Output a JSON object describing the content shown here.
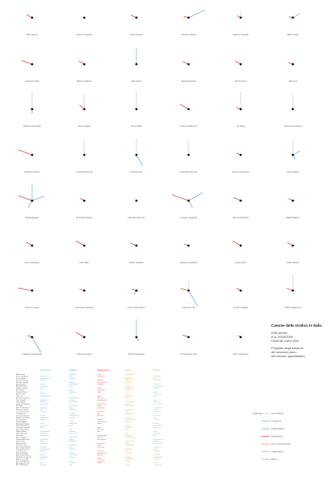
{
  "title_block": {
    "title": "Canone della Grafica in Italia",
    "lines": [
      "ISIA Urbino",
      "A.a. 2008/2009",
      "Docente Carlo Vinti"
    ],
    "project": [
      "Progetto degli studenti",
      "del secondo anno",
      "del biennio specialistico"
    ]
  },
  "glyphs": [
    {
      "name": "Albe Steiner",
      "rays": [
        {
          "angle": 150,
          "length": 8,
          "color": "#e0493a"
        }
      ]
    },
    {
      "name": "Franco Grignani",
      "rays": []
    },
    {
      "name": "Bruno Munari",
      "rays": [
        {
          "angle": 155,
          "length": 8,
          "color": "#e0493a"
        }
      ]
    },
    {
      "name": "Giovanni Pintori",
      "rays": [
        {
          "angle": 25,
          "length": 22,
          "color": "#6aaee0"
        },
        {
          "angle": 165,
          "length": 6,
          "color": "#e0493a"
        }
      ]
    },
    {
      "name": "Massimo Vignelli",
      "rays": [
        {
          "angle": 150,
          "length": 5,
          "color": "#e0493a"
        },
        {
          "angle": 90,
          "length": 8,
          "color": "#cfcfcf"
        }
      ]
    },
    {
      "name": "Bob Noorda",
      "rays": [
        {
          "angle": 30,
          "length": 10,
          "color": "#7fc98f"
        },
        {
          "angle": 165,
          "length": 5,
          "color": "#e0493a"
        }
      ]
    },
    {
      "name": "Armando Testa",
      "rays": [
        {
          "angle": 160,
          "length": 14,
          "color": "#e0493a"
        }
      ]
    },
    {
      "name": "Erberto Carboni",
      "rays": [
        {
          "angle": 150,
          "length": 8,
          "color": "#e0493a"
        }
      ]
    },
    {
      "name": "Max Huber",
      "rays": [
        {
          "angle": 90,
          "length": 20,
          "color": "#7fc98f"
        }
      ]
    },
    {
      "name": "Marcello Nizzoli",
      "rays": [
        {
          "angle": 155,
          "length": 8,
          "color": "#e0493a"
        }
      ]
    },
    {
      "name": "AG Fronzoni",
      "rays": [
        {
          "angle": 150,
          "length": 8,
          "color": "#e0493a"
        }
      ]
    },
    {
      "name": "Italo Lupi",
      "rays": [
        {
          "angle": 160,
          "length": 6,
          "color": "#e0493a"
        }
      ]
    },
    {
      "name": "Michele Provinciali",
      "rays": [
        {
          "angle": 90,
          "length": 22,
          "color": "#cfcfcf"
        },
        {
          "angle": 270,
          "length": 6,
          "color": "#6aaee0"
        }
      ]
    },
    {
      "name": "Pino Tovaglia",
      "rays": [
        {
          "angle": 140,
          "length": 8,
          "color": "#e0493a"
        },
        {
          "angle": 90,
          "length": 20,
          "color": "#cfcfcf"
        }
      ]
    },
    {
      "name": "Heinz Waibl",
      "rays": [
        {
          "angle": 90,
          "length": 22,
          "color": "#cfcfcf"
        }
      ]
    },
    {
      "name": "Giulio Confalonieri",
      "rays": [
        {
          "angle": 150,
          "length": 12,
          "color": "#e0493a"
        }
      ]
    },
    {
      "name": "Ilio Negri",
      "rays": [
        {
          "angle": 160,
          "length": 6,
          "color": "#e0493a"
        },
        {
          "angle": 90,
          "length": 22,
          "color": "#cfcfcf"
        }
      ]
    },
    {
      "name": "Roberto Sambonet",
      "rays": [
        {
          "angle": 90,
          "length": 20,
          "color": "#cfcfcf"
        }
      ]
    },
    {
      "name": "Massimo Dolcini",
      "rays": [
        {
          "angle": 160,
          "length": 18,
          "color": "#e0493a"
        }
      ]
    },
    {
      "name": "Leonardo Sonnoli",
      "rays": [
        {
          "angle": 90,
          "length": 18,
          "color": "#cfcfcf"
        }
      ]
    },
    {
      "name": "Pierluigi Cerri",
      "rays": [
        {
          "angle": 300,
          "length": 16,
          "color": "#6aaee0"
        },
        {
          "angle": 90,
          "length": 20,
          "color": "#cfcfcf"
        }
      ]
    },
    {
      "name": "Giancarlo Iliprandi",
      "rays": [
        {
          "angle": 90,
          "length": 18,
          "color": "#cfcfcf"
        }
      ]
    },
    {
      "name": "Mimmo Castellano",
      "rays": [
        {
          "angle": 155,
          "length": 6,
          "color": "#e0493a"
        }
      ]
    },
    {
      "name": "Franco Balan",
      "rays": [
        {
          "angle": 30,
          "length": 10,
          "color": "#6aaee0"
        },
        {
          "angle": 90,
          "length": 18,
          "color": "#cfcfcf"
        },
        {
          "angle": 300,
          "length": 6,
          "color": "#6aaee0"
        }
      ]
    },
    {
      "name": "Studio Boggeri",
      "rays": [
        {
          "angle": 90,
          "length": 20,
          "color": "#7fc98f"
        },
        {
          "angle": 20,
          "length": 16,
          "color": "#6aaee0"
        },
        {
          "angle": 160,
          "length": 18,
          "color": "#e0493a"
        },
        {
          "angle": 240,
          "length": 10,
          "color": "#6aaee0"
        }
      ]
    },
    {
      "name": "Fortunato Depero",
      "rays": [
        {
          "angle": 150,
          "length": 6,
          "color": "#e0493a"
        }
      ]
    },
    {
      "name": "Marcello Dudovich",
      "rays": []
    },
    {
      "name": "Leonetto Cappiello",
      "rays": [
        {
          "angle": 160,
          "length": 22,
          "color": "#e0493a"
        },
        {
          "angle": 30,
          "length": 20,
          "color": "#6aaee0"
        },
        {
          "angle": 300,
          "length": 10,
          "color": "#6aaee0"
        }
      ]
    },
    {
      "name": "Xanti Schawinsky",
      "rays": [
        {
          "angle": 155,
          "length": 10,
          "color": "#e0493a"
        }
      ]
    },
    {
      "name": "Walter Ballmer",
      "rays": [
        {
          "angle": 155,
          "length": 6,
          "color": "#e0493a"
        }
      ]
    },
    {
      "name": "Remo Muratore",
      "rays": [
        {
          "angle": 150,
          "length": 8,
          "color": "#e0493a"
        }
      ]
    },
    {
      "name": "Enzo Mari",
      "rays": [
        {
          "angle": 150,
          "length": 12,
          "color": "#e0493a"
        }
      ]
    },
    {
      "name": "Ettore Sottsass",
      "rays": [
        {
          "angle": 155,
          "length": 8,
          "color": "#e0493a"
        }
      ]
    },
    {
      "name": "Giovanni Anceschi",
      "rays": [
        {
          "angle": 160,
          "length": 6,
          "color": "#e0493a"
        }
      ]
    },
    {
      "name": "Gianni Sinni",
      "rays": [
        {
          "angle": 150,
          "length": 12,
          "color": "#e0493a"
        }
      ]
    },
    {
      "name": "Mario Piazza",
      "rays": [
        {
          "angle": 150,
          "length": 8,
          "color": "#e0493a"
        }
      ]
    },
    {
      "name": "Giovanni Lussu",
      "rays": [
        {
          "angle": 170,
          "length": 18,
          "color": "#e0493a"
        }
      ]
    },
    {
      "name": "Alessandro Mendini",
      "rays": [
        {
          "angle": 160,
          "length": 6,
          "color": "#e0493a"
        }
      ]
    },
    {
      "name": "Franco Maria Ricci",
      "rays": [
        {
          "angle": 160,
          "length": 6,
          "color": "#e0493a"
        },
        {
          "angle": 240,
          "length": 6,
          "color": "#6aaee0"
        }
      ]
    },
    {
      "name": "Luigi Veronesi",
      "rays": [
        {
          "angle": 165,
          "length": 10,
          "color": "#e0493a"
        },
        {
          "angle": 90,
          "length": 12,
          "color": "#cfcfcf"
        },
        {
          "angle": 300,
          "length": 22,
          "color": "#6aaee0"
        }
      ]
    },
    {
      "name": "Antonio Boggeri",
      "rays": [
        {
          "angle": 150,
          "length": 6,
          "color": "#e0493a"
        }
      ]
    },
    {
      "name": "Alberto Marangoni",
      "rays": [
        {
          "angle": 90,
          "length": 20,
          "color": "#cfcfcf"
        },
        {
          "angle": 160,
          "length": 8,
          "color": "#e0493a"
        }
      ]
    },
    {
      "name": "Salvatore Gregorietti",
      "rays": [
        {
          "angle": 300,
          "length": 22,
          "color": "#6aaee0"
        },
        {
          "angle": 160,
          "length": 6,
          "color": "#e0493a"
        }
      ]
    },
    {
      "name": "Angelo Cesselon",
      "rays": [
        {
          "angle": 150,
          "length": 12,
          "color": "#e0493a"
        }
      ]
    },
    {
      "name": "Nino Di Salvatore",
      "rays": [
        {
          "angle": 90,
          "length": 22,
          "color": "#7fc98f"
        },
        {
          "angle": 300,
          "length": 6,
          "color": "#6aaee0"
        }
      ]
    },
    {
      "name": "Anna Monika Jost",
      "rays": [
        {
          "angle": 160,
          "length": 8,
          "color": "#e0493a"
        }
      ]
    },
    {
      "name": "Bruno Monguzzi",
      "rays": [
        {
          "angle": 150,
          "length": 4,
          "color": "#e0493a"
        }
      ]
    }
  ],
  "table": {
    "columns": [
      {
        "header": "Formazione",
        "color": "#6aaee0"
      },
      {
        "header": "Didattica",
        "color": "#6aaee0"
      },
      {
        "header": "Pubblicazioni",
        "color": "#e0493a"
      },
      {
        "header": "Premi",
        "color": "#f0a040"
      },
      {
        "header": "Mostre",
        "color": "#7fc98f"
      }
    ]
  },
  "legend": {
    "title": "Legenda",
    "items": [
      {
        "label": "Anni di attività",
        "color": "#cfcfcf"
      },
      {
        "label": "Formazione",
        "color": "#6aaee0"
      },
      {
        "label": "Attività didattica",
        "color": "#6aaee0"
      },
      {
        "label": "Pubblicazioni",
        "color": "#e0493a"
      },
      {
        "label": "Premi e riconoscimenti",
        "color": "#f0a040"
      },
      {
        "label": "Collaborazioni",
        "color": "#f0a040"
      },
      {
        "label": "Mostre",
        "color": "#7fc98f"
      }
    ]
  }
}
